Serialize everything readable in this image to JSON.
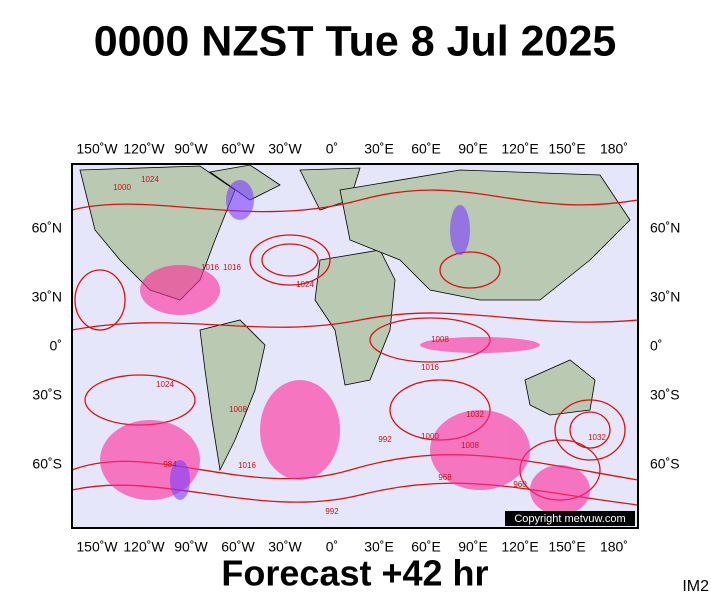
{
  "header": {
    "title": "0000 NZST Tue 8 Jul 2025"
  },
  "map": {
    "lon_labels": [
      "150˚W",
      "120˚W",
      "90˚W",
      "60˚W",
      "30˚W",
      "0˚",
      "30˚E",
      "60˚E",
      "90˚E",
      "120˚E",
      "150˚E",
      "180˚"
    ],
    "lat_labels": [
      "60˚N",
      "30˚N",
      "0˚",
      "30˚S",
      "60˚S"
    ],
    "isobar_labels": [
      "1000",
      "1016",
      "1016",
      "1024",
      "1008",
      "1016",
      "1024",
      "1032",
      "1000",
      "992",
      "1008",
      "1032",
      "984",
      "960",
      "968",
      "992",
      "1016",
      "1008",
      "1024"
    ],
    "copyright": "Copyright metvuw.com"
  },
  "footer": {
    "forecast": "Forecast +42 hr",
    "image_id": "IM2"
  }
}
